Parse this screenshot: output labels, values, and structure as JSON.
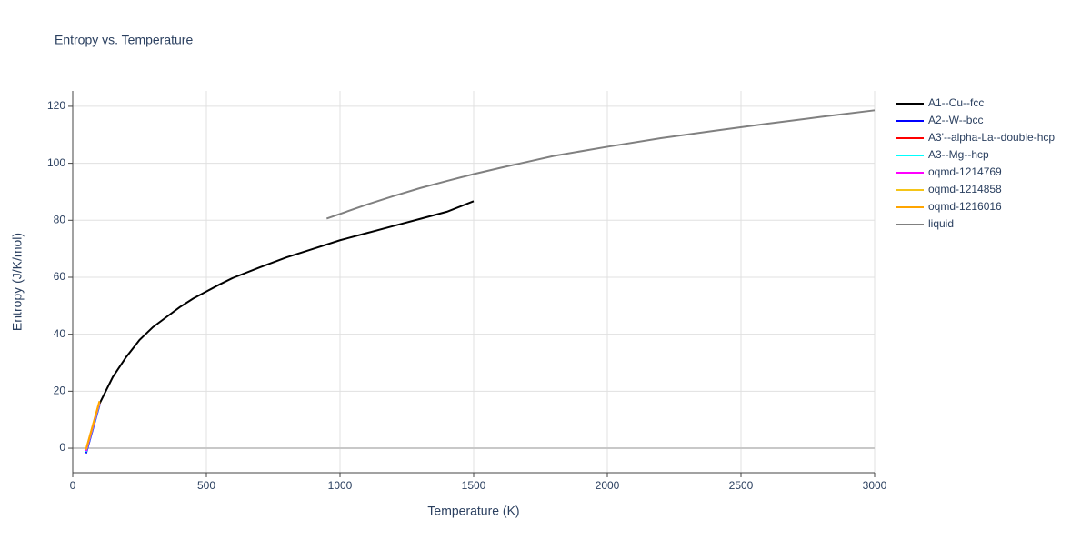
{
  "chart_data": {
    "type": "line",
    "title": "Entropy vs. Temperature",
    "x_label": "Temperature (K)",
    "y_label": "Entropy (J/K/mol)",
    "xlim": [
      0,
      3000
    ],
    "xticks": [
      0,
      500,
      1000,
      1500,
      2000,
      2500,
      3000
    ],
    "ylim": [
      -8.6,
      125.4
    ],
    "yticks": [
      0,
      20,
      40,
      60,
      80,
      100,
      120
    ],
    "grid": true,
    "series": [
      {
        "name": "A1--Cu--fcc",
        "color": "#000000",
        "x": [
          100,
          150,
          200,
          250,
          300,
          350,
          400,
          450,
          500,
          550,
          600,
          700,
          800,
          900,
          1000,
          1100,
          1200,
          1300,
          1400,
          1500
        ],
        "values": [
          15.6,
          25,
          32,
          38,
          42.5,
          46,
          49.5,
          52.5,
          55,
          57.5,
          59.8,
          63.5,
          67,
          70,
          73,
          75.5,
          78,
          80.5,
          83,
          86.7
        ]
      },
      {
        "name": "A2--W--bcc",
        "color": "#0000ff",
        "x": [
          50,
          100
        ],
        "values": [
          -1.8,
          15
        ]
      },
      {
        "name": "A3'--alpha-La--double-hcp",
        "color": "#ff0000",
        "x": [
          50,
          100
        ],
        "values": [
          -1.2,
          15.5
        ]
      },
      {
        "name": "A3--Mg--hcp",
        "color": "#00ffff",
        "x": [
          50,
          100
        ],
        "values": [
          -1.3,
          15.4
        ]
      },
      {
        "name": "oqmd-1214769",
        "color": "#ff00ff",
        "x": [
          50,
          100
        ],
        "values": [
          -1.0,
          15.8
        ]
      },
      {
        "name": "oqmd-1214858",
        "color": "#f5c518",
        "x": [
          50,
          100
        ],
        "values": [
          -0.5,
          16.2
        ]
      },
      {
        "name": "oqmd-1216016",
        "color": "#ffa500",
        "x": [
          50,
          100
        ],
        "values": [
          -0.3,
          16.5
        ]
      },
      {
        "name": "liquid",
        "color": "#808080",
        "x": [
          950,
          1100,
          1200,
          1300,
          1400,
          1500,
          1600,
          1700,
          1800,
          2000,
          2200,
          2400,
          2600,
          2800,
          3000
        ],
        "values": [
          80.6,
          85.5,
          88.5,
          91.3,
          93.8,
          96.2,
          98.4,
          100.5,
          102.6,
          105.8,
          108.8,
          111.4,
          113.9,
          116.3,
          118.6
        ]
      }
    ]
  }
}
